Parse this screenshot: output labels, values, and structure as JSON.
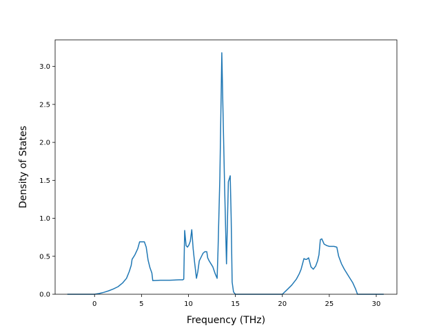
{
  "chart_data": {
    "type": "line",
    "title": "",
    "xlabel": "Frequency (THz)",
    "ylabel": "Density of States",
    "xlim": [
      -4.2,
      32.2
    ],
    "ylim": [
      0.0,
      3.35
    ],
    "xticks": [
      0,
      5,
      10,
      15,
      20,
      25,
      30
    ],
    "xtick_labels": [
      "0",
      "5",
      "10",
      "15",
      "20",
      "25",
      "30"
    ],
    "yticks": [
      0.0,
      0.5,
      1.0,
      1.5,
      2.0,
      2.5,
      3.0
    ],
    "ytick_labels": [
      "0.0",
      "0.5",
      "1.0",
      "1.5",
      "2.0",
      "2.5",
      "3.0"
    ],
    "grid": false,
    "legend": "none",
    "color": "#1f77b4",
    "series": [
      {
        "x": [
          -2.9,
          0.0,
          0.5,
          1.0,
          1.5,
          2.0,
          2.5,
          3.0,
          3.4,
          3.7,
          3.9,
          4.0,
          4.3,
          4.6,
          4.8,
          5.1,
          5.3,
          5.5,
          5.7,
          5.9,
          6.1,
          6.2,
          7.0,
          8.0,
          9.0,
          9.4,
          9.5,
          9.6,
          9.75,
          9.9,
          10.05,
          10.2,
          10.35,
          10.5,
          10.65,
          10.85,
          11.0,
          11.15,
          11.35,
          11.55,
          11.75,
          11.95,
          12.05,
          12.2,
          12.4,
          12.6,
          12.85,
          13.05,
          13.15,
          13.35,
          13.55,
          13.65,
          13.85,
          14.05,
          14.25,
          14.45,
          14.55,
          14.65,
          14.8,
          15.0,
          15.5,
          16.0,
          18.0,
          20.0,
          20.5,
          21.0,
          21.5,
          21.8,
          22.0,
          22.3,
          22.45,
          22.6,
          22.8,
          23.05,
          23.3,
          23.55,
          23.75,
          23.9,
          24.05,
          24.2,
          24.45,
          24.75,
          25.0,
          25.5,
          25.8,
          26.0,
          26.3,
          26.6,
          27.0,
          27.5,
          27.8,
          28.0,
          28.5,
          30.8
        ],
        "y": [
          0.0,
          0.0,
          0.01,
          0.025,
          0.045,
          0.07,
          0.1,
          0.15,
          0.21,
          0.3,
          0.38,
          0.46,
          0.52,
          0.6,
          0.69,
          0.69,
          0.69,
          0.62,
          0.45,
          0.35,
          0.28,
          0.18,
          0.185,
          0.185,
          0.19,
          0.19,
          0.2,
          0.84,
          0.64,
          0.62,
          0.65,
          0.7,
          0.85,
          0.6,
          0.42,
          0.21,
          0.3,
          0.44,
          0.49,
          0.54,
          0.56,
          0.56,
          0.48,
          0.44,
          0.4,
          0.36,
          0.27,
          0.21,
          0.58,
          1.55,
          3.18,
          2.6,
          1.4,
          0.4,
          1.48,
          1.56,
          1.0,
          0.16,
          0.03,
          0.0,
          0.0,
          0.0,
          0.0,
          0.0,
          0.06,
          0.12,
          0.2,
          0.27,
          0.33,
          0.47,
          0.46,
          0.46,
          0.48,
          0.36,
          0.33,
          0.37,
          0.44,
          0.52,
          0.72,
          0.73,
          0.66,
          0.64,
          0.63,
          0.63,
          0.62,
          0.5,
          0.4,
          0.33,
          0.25,
          0.15,
          0.07,
          0.0,
          0.0,
          0.0
        ]
      }
    ]
  }
}
